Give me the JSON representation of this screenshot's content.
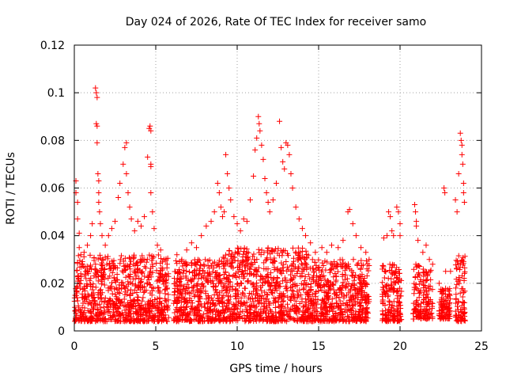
{
  "chart_data": {
    "type": "scatter",
    "title": "Day 024 of 2026, Rate Of TEC Index for receiver samo",
    "xlabel": "GPS time / hours",
    "ylabel": "ROTI / TECUs",
    "xlim": [
      0,
      25
    ],
    "ylim": [
      0,
      0.12
    ],
    "x_ticks": [
      0,
      5,
      10,
      15,
      20,
      25
    ],
    "y_ticks": [
      0,
      0.02,
      0.04,
      0.06,
      0.08,
      0.1,
      0.12
    ],
    "x_tick_labels": [
      "0",
      "5",
      "10",
      "15",
      "20",
      "25"
    ],
    "y_tick_labels": [
      "0",
      "0.02",
      "0.04",
      "0.06",
      "0.08",
      "0.1",
      "0.12"
    ],
    "grid": true,
    "marker": "plus",
    "color": "#ff0000",
    "series": [
      {
        "points": [
          [
            0.1,
            0.063
          ],
          [
            0.1,
            0.058
          ],
          [
            0.2,
            0.054
          ],
          [
            0.2,
            0.047
          ],
          [
            0.3,
            0.041
          ],
          [
            0.3,
            0.035
          ],
          [
            0.4,
            0.032
          ],
          [
            0.5,
            0.028
          ],
          [
            0.6,
            0.033
          ],
          [
            0.8,
            0.036
          ],
          [
            1.0,
            0.04
          ],
          [
            1.1,
            0.045
          ],
          [
            1.3,
            0.102
          ],
          [
            1.35,
            0.1
          ],
          [
            1.4,
            0.098
          ],
          [
            1.35,
            0.087
          ],
          [
            1.4,
            0.086
          ],
          [
            1.4,
            0.079
          ],
          [
            1.45,
            0.066
          ],
          [
            1.5,
            0.063
          ],
          [
            1.5,
            0.058
          ],
          [
            1.5,
            0.054
          ],
          [
            1.55,
            0.05
          ],
          [
            1.6,
            0.045
          ],
          [
            1.7,
            0.04
          ],
          [
            1.9,
            0.036
          ],
          [
            2.1,
            0.04
          ],
          [
            2.3,
            0.043
          ],
          [
            2.5,
            0.046
          ],
          [
            2.7,
            0.056
          ],
          [
            2.8,
            0.062
          ],
          [
            3.0,
            0.07
          ],
          [
            3.1,
            0.077
          ],
          [
            3.2,
            0.079
          ],
          [
            3.2,
            0.066
          ],
          [
            3.3,
            0.058
          ],
          [
            3.4,
            0.052
          ],
          [
            3.5,
            0.047
          ],
          [
            3.7,
            0.042
          ],
          [
            3.9,
            0.046
          ],
          [
            4.1,
            0.044
          ],
          [
            4.3,
            0.048
          ],
          [
            4.5,
            0.073
          ],
          [
            4.6,
            0.085
          ],
          [
            4.65,
            0.086
          ],
          [
            4.7,
            0.084
          ],
          [
            4.7,
            0.07
          ],
          [
            4.7,
            0.069
          ],
          [
            4.7,
            0.058
          ],
          [
            4.8,
            0.05
          ],
          [
            4.9,
            0.043
          ],
          [
            5.1,
            0.036
          ],
          [
            5.3,
            0.034
          ],
          [
            5.5,
            0.03
          ],
          [
            5.7,
            0.028
          ],
          [
            6.3,
            0.032
          ],
          [
            6.6,
            0.03
          ],
          [
            6.9,
            0.034
          ],
          [
            7.2,
            0.037
          ],
          [
            7.5,
            0.035
          ],
          [
            7.8,
            0.04
          ],
          [
            8.1,
            0.044
          ],
          [
            8.4,
            0.046
          ],
          [
            8.6,
            0.05
          ],
          [
            8.8,
            0.062
          ],
          [
            8.9,
            0.058
          ],
          [
            9.0,
            0.052
          ],
          [
            9.1,
            0.048
          ],
          [
            9.2,
            0.05
          ],
          [
            9.3,
            0.074
          ],
          [
            9.4,
            0.066
          ],
          [
            9.5,
            0.06
          ],
          [
            9.6,
            0.055
          ],
          [
            9.8,
            0.048
          ],
          [
            10.0,
            0.045
          ],
          [
            10.2,
            0.042
          ],
          [
            10.4,
            0.047
          ],
          [
            10.6,
            0.046
          ],
          [
            10.8,
            0.055
          ],
          [
            11.0,
            0.065
          ],
          [
            11.1,
            0.076
          ],
          [
            11.2,
            0.081
          ],
          [
            11.3,
            0.09
          ],
          [
            11.35,
            0.087
          ],
          [
            11.4,
            0.084
          ],
          [
            11.5,
            0.078
          ],
          [
            11.6,
            0.072
          ],
          [
            11.7,
            0.064
          ],
          [
            11.8,
            0.058
          ],
          [
            11.9,
            0.054
          ],
          [
            12.0,
            0.05
          ],
          [
            12.2,
            0.055
          ],
          [
            12.4,
            0.062
          ],
          [
            12.6,
            0.088
          ],
          [
            12.7,
            0.077
          ],
          [
            12.8,
            0.071
          ],
          [
            12.9,
            0.068
          ],
          [
            13.0,
            0.079
          ],
          [
            13.1,
            0.078
          ],
          [
            13.2,
            0.074
          ],
          [
            13.3,
            0.066
          ],
          [
            13.4,
            0.06
          ],
          [
            13.6,
            0.052
          ],
          [
            13.8,
            0.047
          ],
          [
            14.0,
            0.043
          ],
          [
            14.2,
            0.04
          ],
          [
            14.5,
            0.037
          ],
          [
            14.8,
            0.033
          ],
          [
            15.2,
            0.035
          ],
          [
            15.5,
            0.033
          ],
          [
            15.8,
            0.036
          ],
          [
            16.2,
            0.035
          ],
          [
            16.5,
            0.038
          ],
          [
            16.8,
            0.05
          ],
          [
            16.9,
            0.051
          ],
          [
            17.1,
            0.045
          ],
          [
            17.3,
            0.04
          ],
          [
            17.6,
            0.035
          ],
          [
            17.9,
            0.033
          ],
          [
            18.1,
            0.03
          ],
          [
            19.0,
            0.039
          ],
          [
            19.2,
            0.04
          ],
          [
            19.3,
            0.05
          ],
          [
            19.4,
            0.048
          ],
          [
            19.5,
            0.042
          ],
          [
            19.6,
            0.04
          ],
          [
            19.8,
            0.052
          ],
          [
            19.9,
            0.05
          ],
          [
            20.0,
            0.045
          ],
          [
            20.0,
            0.04
          ],
          [
            20.9,
            0.053
          ],
          [
            20.95,
            0.05
          ],
          [
            21.0,
            0.046
          ],
          [
            21.0,
            0.044
          ],
          [
            21.1,
            0.038
          ],
          [
            21.4,
            0.033
          ],
          [
            21.6,
            0.036
          ],
          [
            21.8,
            0.03
          ],
          [
            22.0,
            0.028
          ],
          [
            22.4,
            0.02
          ],
          [
            22.7,
            0.06
          ],
          [
            22.75,
            0.058
          ],
          [
            22.8,
            0.025
          ],
          [
            23.1,
            0.025
          ],
          [
            23.4,
            0.055
          ],
          [
            23.5,
            0.05
          ],
          [
            23.6,
            0.066
          ],
          [
            23.7,
            0.083
          ],
          [
            23.75,
            0.08
          ],
          [
            23.8,
            0.078
          ],
          [
            23.8,
            0.074
          ],
          [
            23.85,
            0.07
          ],
          [
            23.9,
            0.062
          ],
          [
            23.9,
            0.058
          ],
          [
            23.95,
            0.054
          ]
        ],
        "dense_bands": [
          {
            "x": [
              0.0,
              5.8
            ],
            "y": [
              0.004,
              0.032
            ]
          },
          {
            "x": [
              6.1,
              9.0
            ],
            "y": [
              0.004,
              0.03
            ]
          },
          {
            "x": [
              9.0,
              14.5
            ],
            "y": [
              0.004,
              0.035
            ]
          },
          {
            "x": [
              14.5,
              18.1
            ],
            "y": [
              0.004,
              0.03
            ]
          },
          {
            "x": [
              18.9,
              20.1
            ],
            "y": [
              0.004,
              0.028
            ]
          },
          {
            "x": [
              20.8,
              21.3
            ],
            "y": [
              0.005,
              0.028
            ]
          },
          {
            "x": [
              21.4,
              22.0
            ],
            "y": [
              0.005,
              0.026
            ]
          },
          {
            "x": [
              22.4,
              23.1
            ],
            "y": [
              0.005,
              0.018
            ]
          },
          {
            "x": [
              23.4,
              24.0
            ],
            "y": [
              0.004,
              0.032
            ]
          }
        ]
      }
    ]
  }
}
